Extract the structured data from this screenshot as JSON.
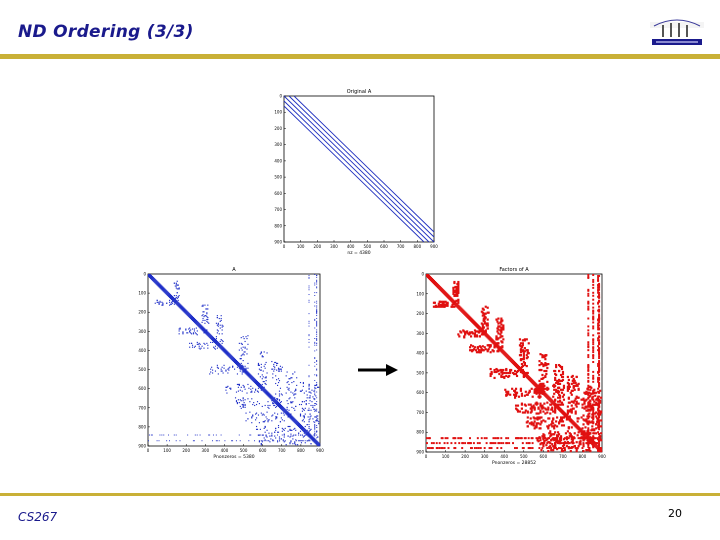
{
  "slide": {
    "title": "ND Ordering (3/3)",
    "footer_left": "CS267",
    "page_number": "20"
  },
  "chart_data": [
    {
      "type": "scatter",
      "title": "Original A",
      "xlabel": "nz = 4380",
      "ylim": [
        0,
        900
      ],
      "xticks": [
        "0",
        "100",
        "200",
        "300",
        "400",
        "500",
        "600",
        "700",
        "800",
        "900"
      ],
      "yticks": [
        "0",
        "100",
        "200",
        "300",
        "400",
        "500",
        "600",
        "700",
        "800",
        "900"
      ],
      "color": "#1f2fbf"
    },
    {
      "type": "scatter",
      "title": "A",
      "xlabel": "Pnonzeros = 5380",
      "ylim": [
        0,
        900
      ],
      "xticks": [
        "0",
        "100",
        "200",
        "300",
        "400",
        "500",
        "600",
        "700",
        "800",
        "900"
      ],
      "yticks": [
        "0",
        "100",
        "200",
        "300",
        "400",
        "500",
        "600",
        "700",
        "800",
        "900"
      ],
      "color": "#2030c8"
    },
    {
      "type": "scatter",
      "title": "Factors of A",
      "xlabel": "Pnonzeros = 28852",
      "ylim": [
        0,
        900
      ],
      "xticks": [
        "0",
        "100",
        "200",
        "300",
        "400",
        "500",
        "600",
        "700",
        "800",
        "900"
      ],
      "yticks": [
        "0",
        "100",
        "200",
        "300",
        "400",
        "500",
        "600",
        "700",
        "800",
        "900"
      ],
      "color": "#e01010"
    }
  ]
}
